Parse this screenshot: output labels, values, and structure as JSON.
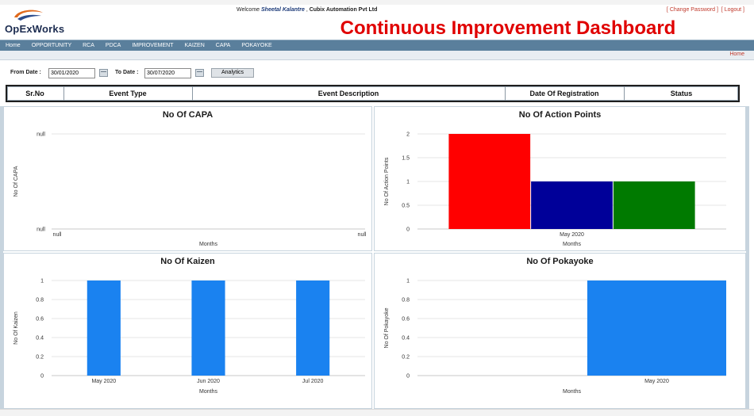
{
  "header": {
    "logo_text": "OpExWorks",
    "welcome_prefix": "Welcome",
    "user_name": "Sheetal Kalantre",
    "company": "Cubix Automation Pvt Ltd",
    "change_password": "Change Password",
    "logout": "Logout",
    "dashboard_title": "Continuous Improvement Dashboard",
    "colors": {
      "title": "#e00000",
      "logo": "#1c2c50",
      "logo_swirl": "#e06a1c"
    }
  },
  "nav": {
    "items": [
      "Home",
      "OPPORTUNITY",
      "RCA",
      "PDCA",
      "IMPROVEMENT",
      "KAIZEN",
      "CAPA",
      "POKAYOKE"
    ],
    "color": "#5a7f9c"
  },
  "breadcrumb": {
    "home": "Home"
  },
  "filter": {
    "from_label": "From Date :",
    "from_value": "30/01/2020",
    "to_label": "To Date :",
    "to_value": "30/07/2020",
    "button": "Analytics"
  },
  "table": {
    "columns": [
      "Sr.No",
      "Event Type",
      "Event Description",
      "Date Of Registration",
      "Status"
    ]
  },
  "chart_data": [
    {
      "type": "bar",
      "title": "No Of CAPA",
      "xlabel": "Months",
      "ylabel": "No Of CAPA",
      "categories": [],
      "values": [],
      "y_tick_labels": [
        "null",
        "null"
      ],
      "x_tick_labels": [
        "null",
        "null"
      ],
      "grid": true
    },
    {
      "type": "bar",
      "title": "No Of Action Points",
      "xlabel": "Months",
      "ylabel": "No Of Action Points",
      "categories": [
        "May 2020"
      ],
      "series": [
        {
          "values": [
            2
          ],
          "color": "#ff0000"
        },
        {
          "values": [
            1
          ],
          "color": "#000099"
        },
        {
          "values": [
            1
          ],
          "color": "#007a00"
        }
      ],
      "y_ticks": [
        "0",
        "0.5",
        "1",
        "1.5",
        "2"
      ],
      "ylim": [
        0,
        2
      ],
      "grid": true
    },
    {
      "type": "bar",
      "title": "No Of Kaizen",
      "xlabel": "Months",
      "ylabel": "No Of Kaizen",
      "categories": [
        "May 2020",
        "Jun 2020",
        "Jul 2020"
      ],
      "values": [
        1,
        1,
        1
      ],
      "color": "#1a82f0",
      "y_ticks": [
        "0",
        "0.2",
        "0.4",
        "0.6",
        "0.8",
        "1"
      ],
      "ylim": [
        0,
        1
      ],
      "grid": true
    },
    {
      "type": "bar",
      "title": "No Of Pokayoke",
      "xlabel": "Months",
      "ylabel": "No Of Pokayoke",
      "categories": [
        "May 2020"
      ],
      "values": [
        1
      ],
      "color": "#1a82f0",
      "y_ticks": [
        "0",
        "0.2",
        "0.4",
        "0.6",
        "0.8",
        "1"
      ],
      "ylim": [
        0,
        1
      ],
      "grid": true
    }
  ]
}
